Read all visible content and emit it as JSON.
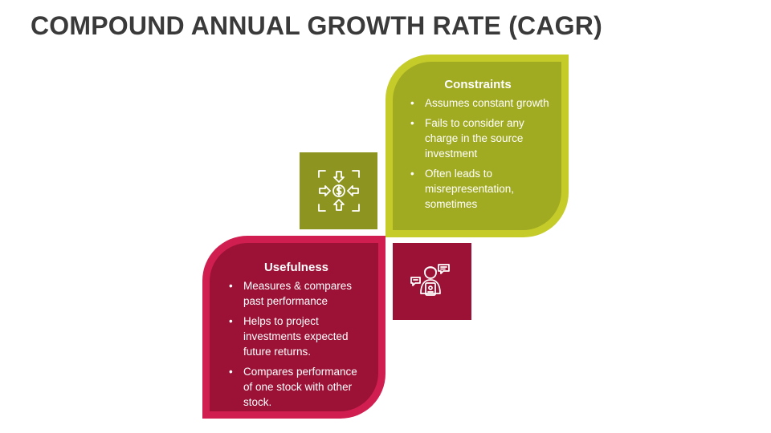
{
  "title": "COMPOUND ANNUAL GROWTH RATE (CAGR)",
  "constraints": {
    "heading": "Constraints",
    "items": [
      "Assumes constant growth",
      "Fails to consider any charge in the source investment",
      "Often leads to misrepresentation, sometimes"
    ],
    "icon": "focus-dollar-arrows-icon",
    "border_color": "#c5cc2a",
    "fill_color": "#a1ab22",
    "icon_fill_color": "#8d9520"
  },
  "usefulness": {
    "heading": "Usefulness",
    "items": [
      "Measures & compares past performance",
      "Helps to project investments expected future returns.",
      "Compares performance of one stock with other stock."
    ],
    "icon": "person-speech-bubbles-icon",
    "border_color": "#cf1e4f",
    "fill_color": "#9b1236",
    "icon_fill_color": "#9b1236"
  }
}
